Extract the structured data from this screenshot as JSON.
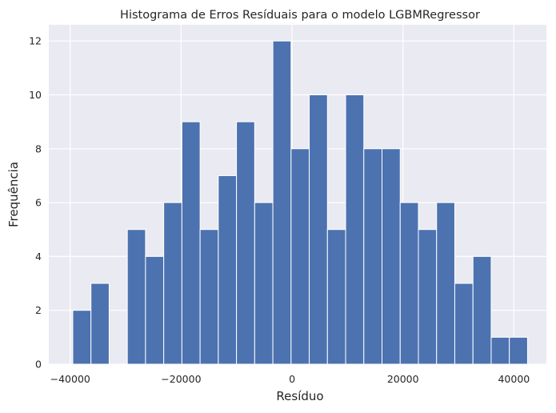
{
  "chart_data": {
    "type": "bar",
    "title": "Histograma de Erros Resíduais para o modelo LGBMRegressor",
    "xlabel": "Resíduo",
    "ylabel": "Frequência",
    "bin_start": -39540,
    "bin_width": 3280,
    "values": [
      2,
      3,
      0,
      5,
      4,
      6,
      9,
      5,
      7,
      9,
      6,
      12,
      8,
      10,
      5,
      10,
      8,
      8,
      6,
      5,
      6,
      3,
      4,
      1,
      1
    ],
    "xlim": [
      -43860,
      45860
    ],
    "ylim": [
      0,
      12.6
    ],
    "xticks": [
      -40000,
      -20000,
      0,
      20000,
      40000
    ],
    "xtick_labels": [
      "−40000",
      "−20000",
      "0",
      "20000",
      "40000"
    ],
    "yticks": [
      0,
      2,
      4,
      6,
      8,
      10,
      12
    ],
    "ytick_labels": [
      "0",
      "2",
      "4",
      "6",
      "8",
      "10",
      "12"
    ],
    "grid": true,
    "bar_color": "#4c72b0",
    "background_color": "#eaeaf2"
  }
}
